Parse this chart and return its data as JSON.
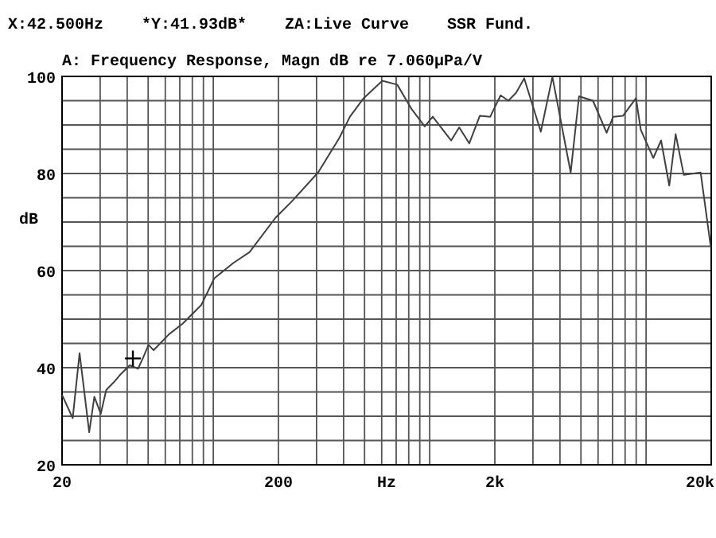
{
  "chart_data": {
    "type": "line",
    "title": "A: Frequency Response, Magn dB re 7.060µPa/V",
    "xlabel": "Hz",
    "ylabel": "dB",
    "log": "x",
    "grid": true,
    "marker": "none",
    "line_style": "solid",
    "annotations": [
      "X:42.500Hz",
      "*Y:41.93dB*",
      "ZA:Live Curve",
      "SSR Fund."
    ],
    "xlim": [
      20,
      20000
    ],
    "ylim": [
      20,
      100
    ],
    "xticks": [
      20,
      {
        "value": 30,
        "label": null
      },
      {
        "value": 40,
        "label": null
      },
      {
        "value": 50,
        "label": null
      },
      {
        "value": 60,
        "label": null
      },
      {
        "value": 70,
        "label": null
      },
      {
        "value": 80,
        "label": null
      },
      {
        "value": 90,
        "label": null
      },
      {
        "value": 100,
        "label": null
      },
      200,
      {
        "value": 300,
        "label": null
      },
      {
        "value": 400,
        "label": null
      },
      {
        "value": 500,
        "label": null
      },
      {
        "value": 600,
        "label": null
      },
      {
        "value": 700,
        "label": null
      },
      {
        "value": 800,
        "label": null
      },
      {
        "value": 900,
        "label": null
      },
      {
        "value": 1000,
        "label": null
      },
      {
        "value": 2000,
        "label": "2k"
      },
      {
        "value": 3000,
        "label": null
      },
      {
        "value": 4000,
        "label": null
      },
      {
        "value": 5000,
        "label": null
      },
      {
        "value": 6000,
        "label": null
      },
      {
        "value": 7000,
        "label": null
      },
      {
        "value": 8000,
        "label": null
      },
      {
        "value": 9000,
        "label": null
      },
      {
        "value": 10000,
        "label": null
      },
      {
        "value": 20000,
        "label": "20k"
      }
    ],
    "yticks": [
      20,
      {
        "value": 25,
        "label": null
      },
      {
        "value": 30,
        "label": null
      },
      {
        "value": 35,
        "label": null
      },
      40,
      {
        "value": 45,
        "label": null
      },
      {
        "value": 50,
        "label": null
      },
      {
        "value": 55,
        "label": null
      },
      60,
      {
        "value": 65,
        "label": null
      },
      {
        "value": 70,
        "label": null
      },
      {
        "value": 75,
        "label": null
      },
      80,
      {
        "value": 85,
        "label": null
      },
      {
        "value": 90,
        "label": null
      },
      {
        "value": 95,
        "label": null
      },
      100
    ],
    "series": [
      {
        "color": "#404040",
        "x": [
          20,
          22.4,
          24.1,
          26.7,
          28.2,
          30.2,
          32,
          34.7,
          37.4,
          41.1,
          44.9,
          47.3,
          50.2,
          53,
          62.5,
          72.3,
          88,
          101,
          124,
          147,
          194,
          230,
          305,
          382,
          428,
          495,
          604,
          708,
          824,
          949,
          1033,
          1257,
          1369,
          1524,
          1705,
          1904,
          2127,
          2309,
          2505,
          2734,
          3262,
          3690,
          4482,
          4898,
          5680,
          6570,
          7050,
          7830,
          8980,
          9450,
          10800,
          11730,
          12800,
          13700,
          14940,
          17870,
          19900
        ],
        "values": [
          34.4,
          29.6,
          43,
          26.7,
          34,
          30.5,
          35.4,
          37,
          38.7,
          40.5,
          39.8,
          42,
          44.7,
          43.6,
          46.9,
          49.1,
          52.9,
          58.4,
          61.6,
          63.8,
          70.9,
          74.2,
          80.2,
          87.3,
          91.7,
          95.5,
          99.1,
          98.3,
          93.3,
          89.7,
          91.7,
          86.8,
          89.5,
          86.2,
          91.9,
          91.7,
          96.1,
          95,
          96.6,
          99.6,
          88.6,
          99.9,
          80.2,
          95.9,
          95,
          88.4,
          91.7,
          91.9,
          95.5,
          89,
          83.2,
          86.8,
          77.5,
          88.1,
          79.7,
          80.2,
          64.9
        ]
      },
      {
        "type": "scatter",
        "marker": "cross",
        "color": "#000000",
        "x": [
          42.5
        ],
        "values": [
          41.9
        ]
      }
    ]
  }
}
